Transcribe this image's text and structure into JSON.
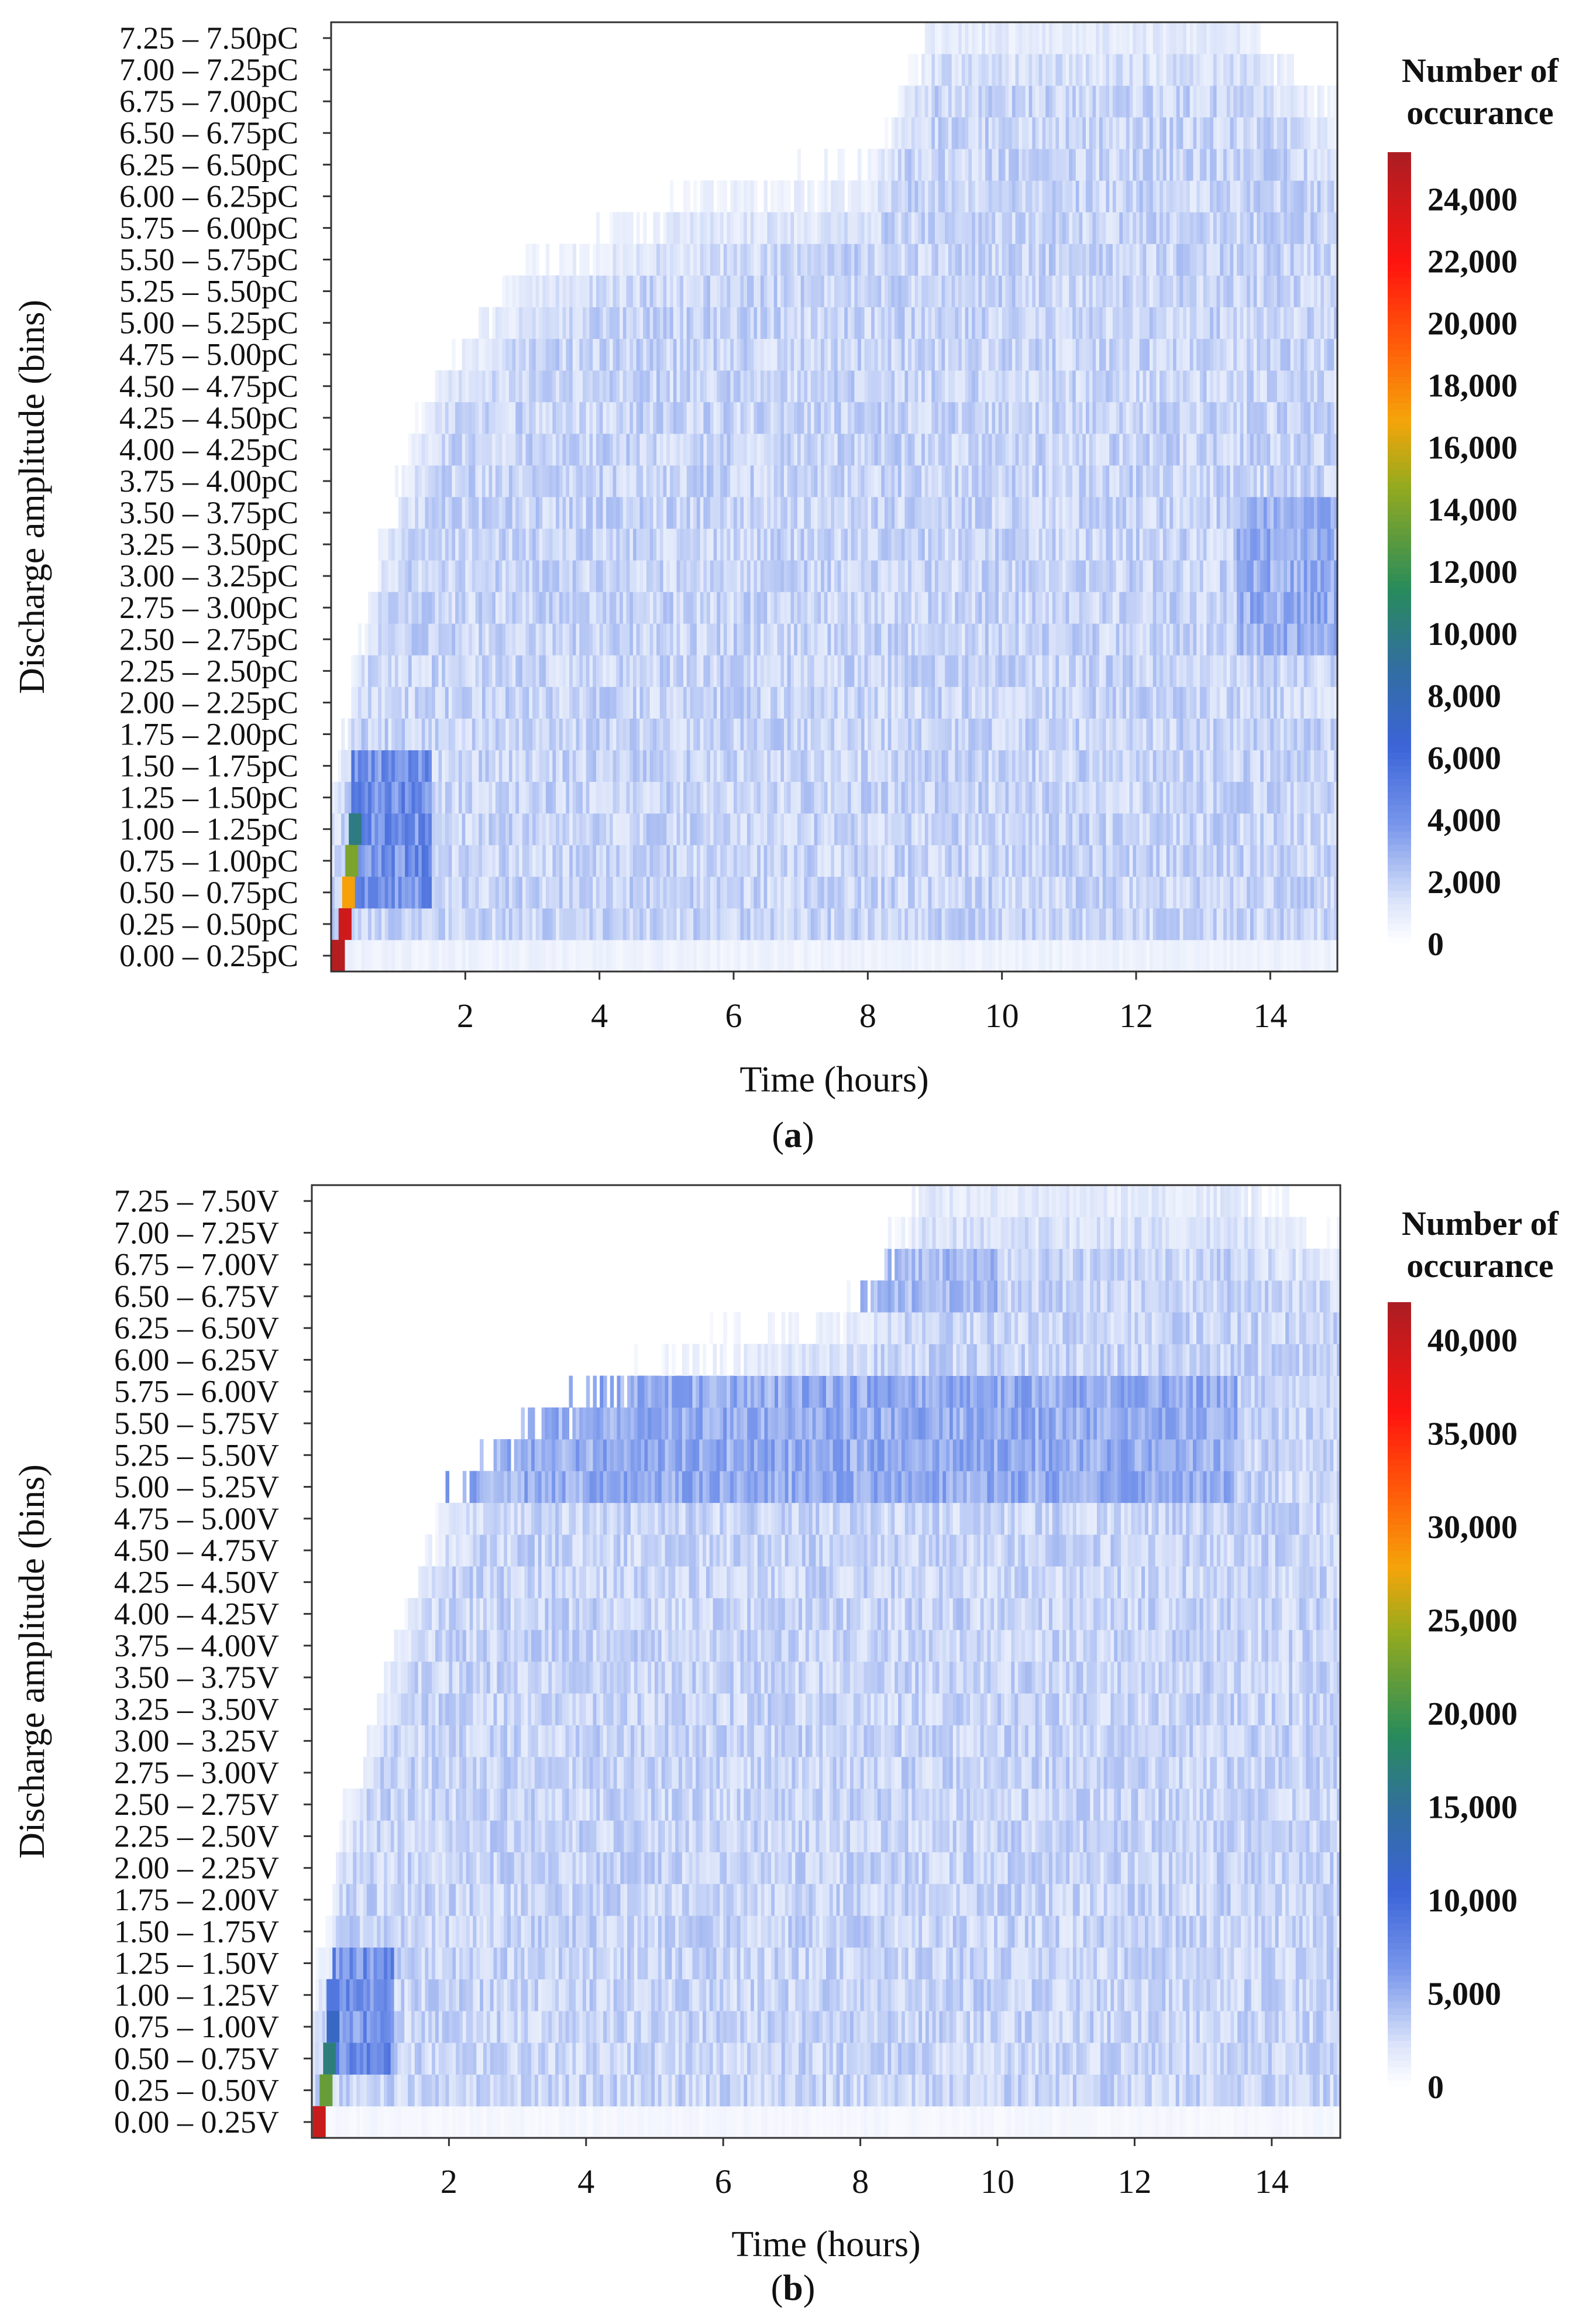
{
  "chart_data": [
    {
      "type": "heatmap",
      "panel": "a",
      "caption_letter": "a",
      "xlabel": "Time (hours)",
      "ylabel": "Discharge amplitude (bins)",
      "xlim": [
        0,
        15
      ],
      "x_ticks": [
        2,
        4,
        6,
        8,
        10,
        12,
        14
      ],
      "x_tick_labels": [
        "2",
        "4",
        "6",
        "8",
        "10",
        "12",
        "14"
      ],
      "y_categories": [
        "0.00 – 0.25pC",
        "0.25 – 0.50pC",
        "0.50 – 0.75pC",
        "0.75 – 1.00pC",
        "1.00 – 1.25pC",
        "1.25 – 1.50pC",
        "1.50 – 1.75pC",
        "1.75 – 2.00pC",
        "2.00 – 2.25pC",
        "2.25 – 2.50pC",
        "2.50 – 2.75pC",
        "2.75 – 3.00pC",
        "3.00 – 3.25pC",
        "3.25 – 3.50pC",
        "3.50 – 3.75pC",
        "3.75 – 4.00pC",
        "4.00 – 4.25pC",
        "4.25 – 4.50pC",
        "4.50 – 4.75pC",
        "4.75 – 5.00pC",
        "5.00 – 5.25pC",
        "5.25 – 5.50pC",
        "5.50 – 5.75pC",
        "5.75 – 6.00pC",
        "6.00 – 6.25pC",
        "6.25 – 6.50pC",
        "6.50 – 6.75pC",
        "6.75 – 7.00pC",
        "7.00 – 7.25pC",
        "7.25 – 7.50pC"
      ],
      "colorbar": {
        "title_lines": [
          "Number of",
          "occurance"
        ],
        "range": [
          0,
          25500
        ],
        "ticks": [
          0,
          2000,
          4000,
          6000,
          8000,
          10000,
          12000,
          14000,
          16000,
          18000,
          20000,
          22000,
          24000
        ],
        "tick_labels": [
          "0",
          "2,000",
          "4,000",
          "6,000",
          "8,000",
          "10,000",
          "12,000",
          "14,000",
          "16,000",
          "18,000",
          "20,000",
          "22,000",
          "24,000"
        ]
      },
      "hotspots": [
        {
          "x": 0.1,
          "bin": 0,
          "value": 25000
        },
        {
          "x": 0.2,
          "bin": 1,
          "value": 24000
        },
        {
          "x": 0.25,
          "bin": 2,
          "value": 17000
        },
        {
          "x": 0.3,
          "bin": 3,
          "value": 14000
        },
        {
          "x": 0.35,
          "bin": 4,
          "value": 10000
        }
      ],
      "onset": {
        "times": [
          0,
          0.25,
          0.5,
          1,
          1.5,
          2,
          3,
          5,
          8,
          9,
          12,
          13.5,
          15
        ],
        "max_bins": [
          4,
          7,
          10,
          14,
          17,
          19,
          21,
          23,
          24,
          29,
          29,
          29,
          26
        ]
      },
      "bright_bands": [
        {
          "t0": 0.3,
          "t1": 1.5,
          "bins": [
            2,
            3,
            4,
            5,
            6
          ],
          "value": 5000
        },
        {
          "t0": 13.5,
          "t1": 15,
          "bins": [
            10,
            11,
            12,
            13,
            14
          ],
          "value": 3500
        }
      ]
    },
    {
      "type": "heatmap",
      "panel": "b",
      "caption_letter": "b",
      "xlabel": "Time (hours)",
      "ylabel": "Discharge amplitude (bins)",
      "xlim": [
        0,
        15
      ],
      "x_ticks": [
        2,
        4,
        6,
        8,
        10,
        12,
        14
      ],
      "x_tick_labels": [
        "2",
        "4",
        "6",
        "8",
        "10",
        "12",
        "14"
      ],
      "y_categories": [
        "0.00 – 0.25V",
        "0.25 – 0.50V",
        "0.50 – 0.75V",
        "0.75 – 1.00V",
        "1.00 – 1.25V",
        "1.25 – 1.50V",
        "1.50 – 1.75V",
        "1.75 – 2.00V",
        "2.00 – 2.25V",
        "2.25 – 2.50V",
        "2.50 – 2.75V",
        "2.75 – 3.00V",
        "3.00 – 3.25V",
        "3.25 – 3.50V",
        "3.50 – 3.75V",
        "3.75 – 4.00V",
        "4.00 – 4.25V",
        "4.25 – 4.50V",
        "4.50 – 4.75V",
        "4.75 – 5.00V",
        "5.00 – 5.25V",
        "5.25 – 5.50V",
        "5.50 – 5.75V",
        "5.75 – 6.00V",
        "6.00 – 6.25V",
        "6.25 – 6.50V",
        "6.50 – 6.75V",
        "6.75 – 7.00V",
        "7.00 – 7.25V",
        "7.25 – 7.50V"
      ],
      "colorbar": {
        "title_lines": [
          "Number of",
          "occurance"
        ],
        "range": [
          0,
          42000
        ],
        "ticks": [
          0,
          5000,
          10000,
          15000,
          20000,
          25000,
          30000,
          35000,
          40000
        ],
        "tick_labels": [
          "0",
          "5,000",
          "10,000",
          "15,000",
          "20,000",
          "25,000",
          "30,000",
          "35,000",
          "40,000"
        ]
      },
      "hotspots": [
        {
          "x": 0.1,
          "bin": 0,
          "value": 40000
        },
        {
          "x": 0.2,
          "bin": 1,
          "value": 22000
        },
        {
          "x": 0.25,
          "bin": 2,
          "value": 17000
        },
        {
          "x": 0.3,
          "bin": 3,
          "value": 12000
        },
        {
          "x": 0.3,
          "bin": 4,
          "value": 9000
        }
      ],
      "onset": {
        "times": [
          0,
          0.25,
          0.5,
          1,
          1.5,
          2,
          3,
          5,
          8,
          9,
          12,
          13.5,
          15
        ],
        "max_bins": [
          3,
          6,
          9,
          13,
          16,
          19,
          21,
          23,
          25,
          29,
          29,
          29,
          27
        ]
      },
      "bright_bands": [
        {
          "t0": 1.8,
          "t1": 13.5,
          "bins": [
            20,
            21,
            22,
            23
          ],
          "value": 6000
        },
        {
          "t0": 8,
          "t1": 10,
          "bins": [
            26,
            27
          ],
          "value": 5000
        },
        {
          "t0": 0.3,
          "t1": 1.2,
          "bins": [
            2,
            3,
            4,
            5
          ],
          "value": 8000
        }
      ]
    }
  ]
}
